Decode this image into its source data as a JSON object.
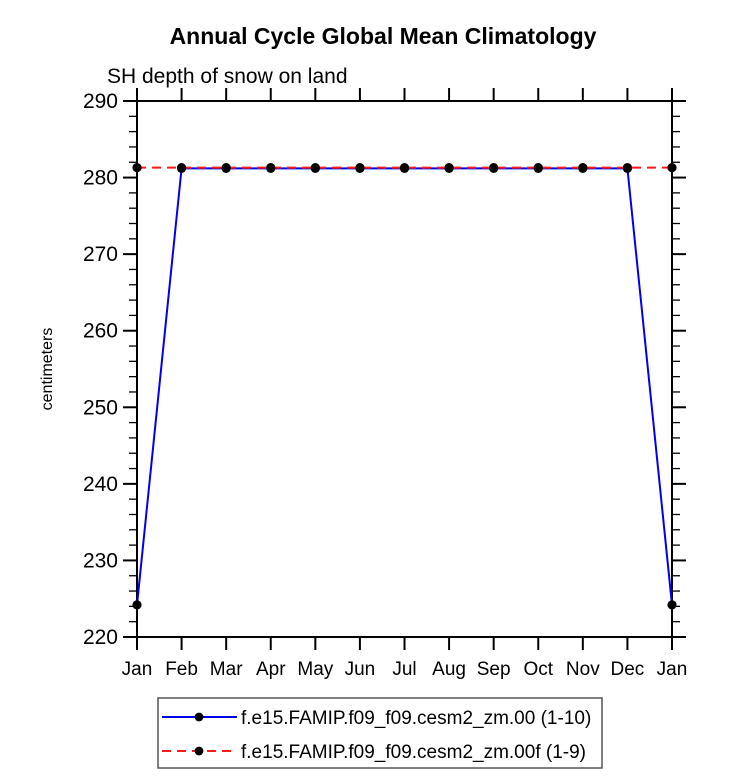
{
  "chart_data": {
    "type": "line",
    "title": "Annual Cycle Global Mean Climatology",
    "subtitle": "SH depth of snow on land",
    "ylabel": "centimeters",
    "xlabel": "",
    "categories": [
      "Jan",
      "Feb",
      "Mar",
      "Apr",
      "May",
      "Jun",
      "Jul",
      "Aug",
      "Sep",
      "Oct",
      "Nov",
      "Dec",
      "Jan"
    ],
    "y_tick_labels": [
      "220",
      "230",
      "240",
      "250",
      "260",
      "270",
      "280",
      "290"
    ],
    "ylim": [
      220,
      290
    ],
    "ytick_major_step": 10,
    "ytick_minor_step": 2,
    "grid": false,
    "legend_position": "bottom",
    "series": [
      {
        "name": "f.e15.FAMIP.f09_f09.cesm2_zm.00 (1-10)",
        "line_style": "solid",
        "color": "#0000ee",
        "marker": "black-dot",
        "values": [
          224.2,
          281.2,
          281.2,
          281.2,
          281.2,
          281.2,
          281.2,
          281.2,
          281.2,
          281.2,
          281.2,
          281.2,
          224.2
        ]
      },
      {
        "name": "f.e15.FAMIP.f09_f09.cesm2_zm.00f (1-9)",
        "line_style": "dashed",
        "color": "#ff1a1a",
        "marker": "black-dot",
        "values": [
          281.3,
          281.3,
          281.3,
          281.3,
          281.3,
          281.3,
          281.3,
          281.3,
          281.3,
          281.3,
          281.3,
          281.3,
          281.3
        ]
      }
    ],
    "colors": {
      "axis": "#000000",
      "marker": "#000000",
      "legend_border": "#555555"
    }
  }
}
